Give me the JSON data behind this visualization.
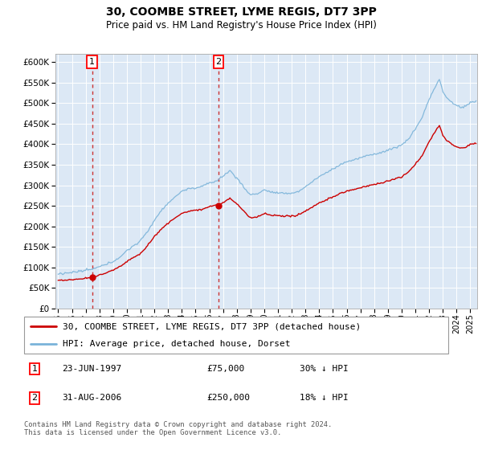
{
  "title": "30, COOMBE STREET, LYME REGIS, DT7 3PP",
  "subtitle": "Price paid vs. HM Land Registry's House Price Index (HPI)",
  "legend_line1": "30, COOMBE STREET, LYME REGIS, DT7 3PP (detached house)",
  "legend_line2": "HPI: Average price, detached house, Dorset",
  "annotation1_date": "23-JUN-1997",
  "annotation1_price": "£75,000",
  "annotation1_hpi": "30% ↓ HPI",
  "annotation1_year": 1997.47,
  "annotation1_value": 75000,
  "annotation2_date": "31-AUG-2006",
  "annotation2_price": "£250,000",
  "annotation2_hpi": "18% ↓ HPI",
  "annotation2_year": 2006.67,
  "annotation2_value": 250000,
  "copyright_text": "Contains HM Land Registry data © Crown copyright and database right 2024.\nThis data is licensed under the Open Government Licence v3.0.",
  "hpi_color": "#7ab3d9",
  "price_color": "#cc0000",
  "background_color": "#dce8f5",
  "ylim_max": 620000,
  "yticks": [
    0,
    50000,
    100000,
    150000,
    200000,
    250000,
    300000,
    350000,
    400000,
    450000,
    500000,
    550000,
    600000
  ],
  "xlim_start": 1994.8,
  "xlim_end": 2025.5
}
